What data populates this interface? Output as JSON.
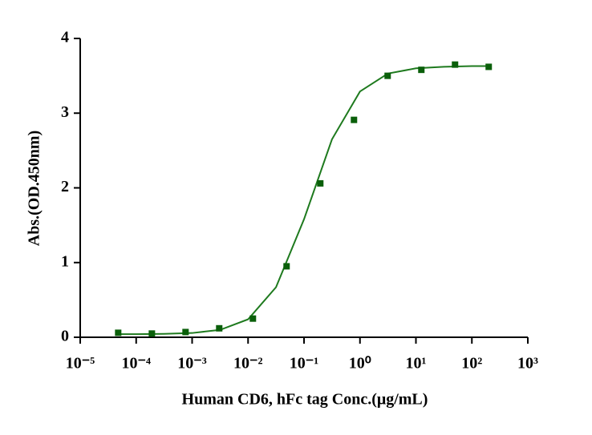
{
  "chart_data": {
    "type": "scatter",
    "xlabel": "Human CD6, hFc tag Conc.(μg/mL)",
    "ylabel": "Abs.(OD.450nm)",
    "xscale": "log",
    "xlim": [
      1e-05,
      1000
    ],
    "xticks": [
      {
        "value": 1e-05,
        "label": "10⁻⁵"
      },
      {
        "value": 0.0001,
        "label": "10⁻⁴"
      },
      {
        "value": 0.001,
        "label": "10⁻³"
      },
      {
        "value": 0.01,
        "label": "10⁻²"
      },
      {
        "value": 0.1,
        "label": "10⁻¹"
      },
      {
        "value": 1,
        "label": "10⁰"
      },
      {
        "value": 10,
        "label": "10¹"
      },
      {
        "value": 100,
        "label": "10²"
      },
      {
        "value": 1000,
        "label": "10³"
      }
    ],
    "ylim": [
      0,
      4
    ],
    "yticks": [
      0,
      1,
      2,
      3,
      4
    ],
    "series": [
      {
        "mode": "markers",
        "color": "#0a5f0a",
        "x": [
          4.77e-05,
          0.000191,
          0.000763,
          0.00305,
          0.0122,
          0.0488,
          0.1953,
          0.78125,
          3.125,
          12.5,
          50,
          200
        ],
        "values": [
          0.06,
          0.05,
          0.07,
          0.12,
          0.25,
          0.95,
          2.06,
          2.91,
          3.5,
          3.58,
          3.65,
          3.62
        ]
      },
      {
        "mode": "line",
        "color": "#1e7a1e",
        "x": [
          4.77e-05,
          0.0001,
          0.000316,
          0.001,
          0.00316,
          0.01,
          0.0316,
          0.1,
          0.316,
          1,
          3.16,
          10,
          31.6,
          100,
          200
        ],
        "values": [
          0.041,
          0.041,
          0.045,
          0.057,
          0.099,
          0.24,
          0.67,
          1.58,
          2.65,
          3.29,
          3.53,
          3.6,
          3.62,
          3.63,
          3.63
        ]
      }
    ]
  }
}
